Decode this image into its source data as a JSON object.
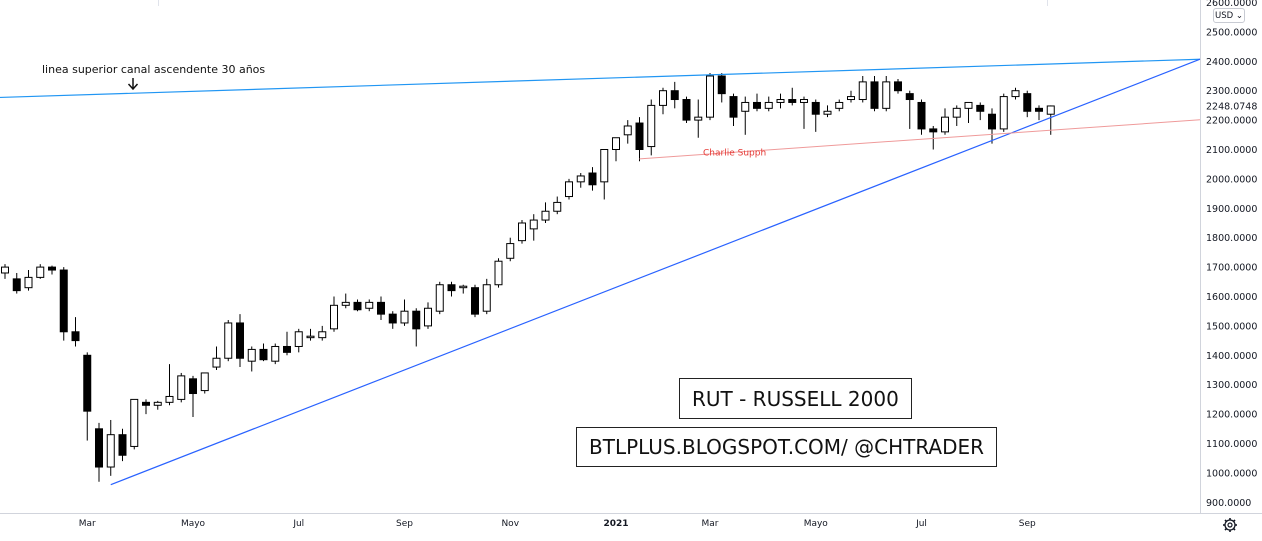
{
  "chart_data": {
    "type": "candlestick",
    "title": "RUT - RUSSELL 2000",
    "credit": "BTLPLUS.BLOGSPOT.COM/ @CHTRADER",
    "currency": "USD",
    "last_price": "2248.0748",
    "ylim": [
      900,
      2600
    ],
    "y_ticks": [
      "900.0000",
      "1000.0000",
      "1100.0000",
      "1200.0000",
      "1300.0000",
      "1400.0000",
      "1500.0000",
      "1600.0000",
      "1700.0000",
      "1800.0000",
      "1900.0000",
      "2000.0000",
      "2100.0000",
      "2200.0000",
      "2300.0000",
      "2400.0000",
      "2500.0000",
      "2600.0000"
    ],
    "x_ticks": [
      {
        "label": "Mar",
        "index": 7
      },
      {
        "label": "Mayo",
        "index": 16
      },
      {
        "label": "Jul",
        "index": 25
      },
      {
        "label": "Sep",
        "index": 34
      },
      {
        "label": "Nov",
        "index": 43
      },
      {
        "label": "2021",
        "index": 52,
        "bold": true
      },
      {
        "label": "Mar",
        "index": 60
      },
      {
        "label": "Mayo",
        "index": 69
      },
      {
        "label": "Jul",
        "index": 78
      },
      {
        "label": "Sep",
        "index": 87
      }
    ],
    "candles": [
      {
        "o": 1680,
        "h": 1710,
        "l": 1660,
        "c": 1700
      },
      {
        "o": 1660,
        "h": 1680,
        "l": 1610,
        "c": 1620
      },
      {
        "o": 1630,
        "h": 1690,
        "l": 1620,
        "c": 1665
      },
      {
        "o": 1665,
        "h": 1710,
        "l": 1660,
        "c": 1700
      },
      {
        "o": 1700,
        "h": 1705,
        "l": 1675,
        "c": 1690
      },
      {
        "o": 1690,
        "h": 1700,
        "l": 1450,
        "c": 1480
      },
      {
        "o": 1480,
        "h": 1530,
        "l": 1430,
        "c": 1450
      },
      {
        "o": 1400,
        "h": 1410,
        "l": 1110,
        "c": 1210
      },
      {
        "o": 1150,
        "h": 1170,
        "l": 970,
        "c": 1020
      },
      {
        "o": 1020,
        "h": 1180,
        "l": 990,
        "c": 1130
      },
      {
        "o": 1130,
        "h": 1150,
        "l": 1040,
        "c": 1060
      },
      {
        "o": 1090,
        "h": 1250,
        "l": 1080,
        "c": 1250
      },
      {
        "o": 1240,
        "h": 1250,
        "l": 1200,
        "c": 1230
      },
      {
        "o": 1230,
        "h": 1245,
        "l": 1215,
        "c": 1240
      },
      {
        "o": 1240,
        "h": 1370,
        "l": 1230,
        "c": 1260
      },
      {
        "o": 1250,
        "h": 1340,
        "l": 1240,
        "c": 1330
      },
      {
        "o": 1320,
        "h": 1330,
        "l": 1190,
        "c": 1270
      },
      {
        "o": 1280,
        "h": 1340,
        "l": 1270,
        "c": 1340
      },
      {
        "o": 1360,
        "h": 1430,
        "l": 1350,
        "c": 1390
      },
      {
        "o": 1390,
        "h": 1520,
        "l": 1380,
        "c": 1510
      },
      {
        "o": 1510,
        "h": 1540,
        "l": 1360,
        "c": 1390
      },
      {
        "o": 1380,
        "h": 1430,
        "l": 1345,
        "c": 1420
      },
      {
        "o": 1420,
        "h": 1440,
        "l": 1380,
        "c": 1385
      },
      {
        "o": 1380,
        "h": 1440,
        "l": 1370,
        "c": 1430
      },
      {
        "o": 1430,
        "h": 1480,
        "l": 1400,
        "c": 1410
      },
      {
        "o": 1430,
        "h": 1490,
        "l": 1410,
        "c": 1480
      },
      {
        "o": 1460,
        "h": 1490,
        "l": 1450,
        "c": 1465
      },
      {
        "o": 1460,
        "h": 1500,
        "l": 1450,
        "c": 1480
      },
      {
        "o": 1490,
        "h": 1600,
        "l": 1480,
        "c": 1570
      },
      {
        "o": 1570,
        "h": 1610,
        "l": 1560,
        "c": 1580
      },
      {
        "o": 1580,
        "h": 1590,
        "l": 1550,
        "c": 1555
      },
      {
        "o": 1560,
        "h": 1590,
        "l": 1550,
        "c": 1580
      },
      {
        "o": 1580,
        "h": 1600,
        "l": 1520,
        "c": 1540
      },
      {
        "o": 1540,
        "h": 1550,
        "l": 1490,
        "c": 1510
      },
      {
        "o": 1510,
        "h": 1590,
        "l": 1500,
        "c": 1550
      },
      {
        "o": 1550,
        "h": 1560,
        "l": 1430,
        "c": 1490
      },
      {
        "o": 1500,
        "h": 1580,
        "l": 1490,
        "c": 1560
      },
      {
        "o": 1550,
        "h": 1650,
        "l": 1540,
        "c": 1640
      },
      {
        "o": 1640,
        "h": 1650,
        "l": 1600,
        "c": 1620
      },
      {
        "o": 1630,
        "h": 1640,
        "l": 1610,
        "c": 1635
      },
      {
        "o": 1630,
        "h": 1640,
        "l": 1530,
        "c": 1540
      },
      {
        "o": 1550,
        "h": 1660,
        "l": 1540,
        "c": 1640
      },
      {
        "o": 1640,
        "h": 1730,
        "l": 1630,
        "c": 1720
      },
      {
        "o": 1730,
        "h": 1800,
        "l": 1720,
        "c": 1780
      },
      {
        "o": 1790,
        "h": 1860,
        "l": 1780,
        "c": 1850
      },
      {
        "o": 1830,
        "h": 1880,
        "l": 1790,
        "c": 1860
      },
      {
        "o": 1860,
        "h": 1920,
        "l": 1850,
        "c": 1890
      },
      {
        "o": 1890,
        "h": 1940,
        "l": 1880,
        "c": 1920
      },
      {
        "o": 1940,
        "h": 2000,
        "l": 1930,
        "c": 1990
      },
      {
        "o": 1990,
        "h": 2020,
        "l": 1970,
        "c": 2010
      },
      {
        "o": 2020,
        "h": 2040,
        "l": 1960,
        "c": 1980
      },
      {
        "o": 1990,
        "h": 2100,
        "l": 1930,
        "c": 2100
      },
      {
        "o": 2100,
        "h": 2140,
        "l": 2060,
        "c": 2140
      },
      {
        "o": 2150,
        "h": 2200,
        "l": 2120,
        "c": 2180
      },
      {
        "o": 2190,
        "h": 2210,
        "l": 2060,
        "c": 2100
      },
      {
        "o": 2110,
        "h": 2270,
        "l": 2080,
        "c": 2250
      },
      {
        "o": 2250,
        "h": 2310,
        "l": 2220,
        "c": 2300
      },
      {
        "o": 2300,
        "h": 2330,
        "l": 2240,
        "c": 2270
      },
      {
        "o": 2270,
        "h": 2280,
        "l": 2190,
        "c": 2200
      },
      {
        "o": 2200,
        "h": 2270,
        "l": 2140,
        "c": 2210
      },
      {
        "o": 2210,
        "h": 2360,
        "l": 2200,
        "c": 2350
      },
      {
        "o": 2350,
        "h": 2360,
        "l": 2260,
        "c": 2290
      },
      {
        "o": 2280,
        "h": 2290,
        "l": 2180,
        "c": 2210
      },
      {
        "o": 2230,
        "h": 2280,
        "l": 2150,
        "c": 2260
      },
      {
        "o": 2260,
        "h": 2290,
        "l": 2230,
        "c": 2240
      },
      {
        "o": 2240,
        "h": 2280,
        "l": 2230,
        "c": 2260
      },
      {
        "o": 2260,
        "h": 2290,
        "l": 2240,
        "c": 2270
      },
      {
        "o": 2270,
        "h": 2310,
        "l": 2250,
        "c": 2260
      },
      {
        "o": 2260,
        "h": 2280,
        "l": 2170,
        "c": 2270
      },
      {
        "o": 2260,
        "h": 2270,
        "l": 2160,
        "c": 2220
      },
      {
        "o": 2220,
        "h": 2250,
        "l": 2210,
        "c": 2230
      },
      {
        "o": 2240,
        "h": 2270,
        "l": 2230,
        "c": 2260
      },
      {
        "o": 2270,
        "h": 2300,
        "l": 2260,
        "c": 2280
      },
      {
        "o": 2270,
        "h": 2350,
        "l": 2260,
        "c": 2330
      },
      {
        "o": 2330,
        "h": 2350,
        "l": 2230,
        "c": 2240
      },
      {
        "o": 2240,
        "h": 2350,
        "l": 2230,
        "c": 2330
      },
      {
        "o": 2330,
        "h": 2340,
        "l": 2290,
        "c": 2300
      },
      {
        "o": 2290,
        "h": 2300,
        "l": 2170,
        "c": 2270
      },
      {
        "o": 2260,
        "h": 2270,
        "l": 2150,
        "c": 2170
      },
      {
        "o": 2170,
        "h": 2180,
        "l": 2100,
        "c": 2160
      },
      {
        "o": 2160,
        "h": 2240,
        "l": 2150,
        "c": 2210
      },
      {
        "o": 2210,
        "h": 2250,
        "l": 2180,
        "c": 2240
      },
      {
        "o": 2240,
        "h": 2260,
        "l": 2190,
        "c": 2260
      },
      {
        "o": 2250,
        "h": 2260,
        "l": 2200,
        "c": 2230
      },
      {
        "o": 2220,
        "h": 2240,
        "l": 2120,
        "c": 2170
      },
      {
        "o": 2170,
        "h": 2290,
        "l": 2160,
        "c": 2280
      },
      {
        "o": 2280,
        "h": 2310,
        "l": 2270,
        "c": 2300
      },
      {
        "o": 2290,
        "h": 2300,
        "l": 2210,
        "c": 2230
      },
      {
        "o": 2240,
        "h": 2250,
        "l": 2200,
        "c": 2230
      },
      {
        "o": 2220,
        "h": 2250,
        "l": 2150,
        "c": 2248.0748
      }
    ],
    "trendlines": [
      {
        "name": "linea superior canal ascendente 30 años",
        "color": "#2196f3"
      },
      {
        "name": "",
        "color": "#2962ff"
      },
      {
        "name": "Charlie Supph",
        "color": "#ef9a9a",
        "label_color": "#e53935"
      }
    ]
  }
}
